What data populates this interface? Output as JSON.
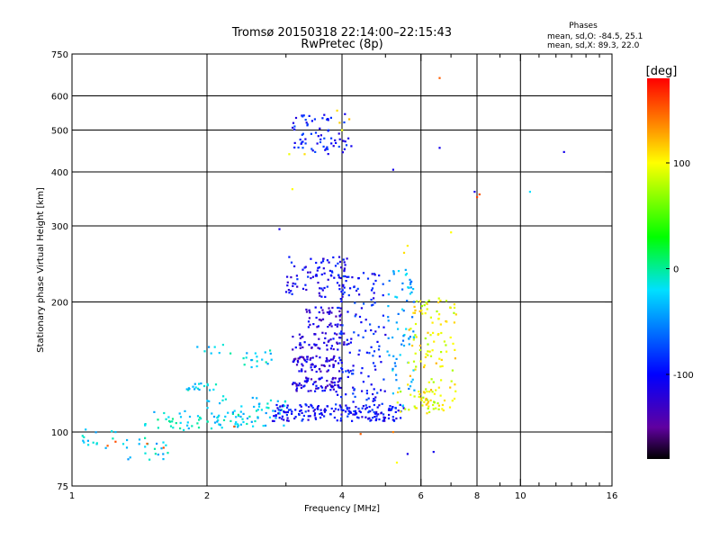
{
  "chart_data": {
    "type": "scatter",
    "title": "Tromsø 20150318 22:14:00–22:15:43",
    "subtitle": "RwPretec (8p)",
    "xlabel": "Frequency [MHz]",
    "ylabel": "Stationary phase Virtual Height [km]",
    "xscale": "log",
    "yscale": "log",
    "xlim": [
      1,
      16
    ],
    "ylim": [
      75,
      750
    ],
    "x_ticks": [
      1,
      2,
      4,
      6,
      8,
      10,
      16
    ],
    "x_tick_labels": [
      "1",
      "2",
      "4",
      "6",
      "8",
      "10",
      "16"
    ],
    "x_major_grid": [
      2,
      4,
      6,
      8,
      10
    ],
    "x_minor_ticks": [
      3,
      5,
      7,
      9,
      11,
      12,
      13,
      14,
      15
    ],
    "y_ticks": [
      75,
      100,
      200,
      300,
      400,
      500,
      600,
      750
    ],
    "y_tick_labels": [
      "75",
      "100",
      "200",
      "300",
      "400",
      "500",
      "600",
      "750"
    ],
    "y_major_grid": [
      100,
      200,
      300,
      400,
      500,
      600
    ],
    "grid": true,
    "info": {
      "heading": "Phases",
      "line1": "mean, sd,O: -84.5, 25.1",
      "line2": "mean, sd,X:  89.3, 22.0"
    },
    "colorbar": {
      "label": "[deg]",
      "ticks": [
        100,
        0,
        -100
      ],
      "tick_labels": [
        "100",
        "0",
        "-100"
      ],
      "range": [
        -180,
        180
      ],
      "stops": [
        {
          "value": 180,
          "color": "#ff0000"
        },
        {
          "value": 135,
          "color": "#ff8c00"
        },
        {
          "value": 100,
          "color": "#ffff00"
        },
        {
          "value": 30,
          "color": "#00ff00"
        },
        {
          "value": -20,
          "color": "#00e0ff"
        },
        {
          "value": -100,
          "color": "#0000ff"
        },
        {
          "value": -150,
          "color": "#6000a0"
        },
        {
          "value": -180,
          "color": "#000000"
        }
      ]
    },
    "groups": [
      {
        "label": "o-trace-low",
        "x_range": [
          1.45,
          2.6
        ],
        "y_range": [
          101,
          112
        ],
        "phase": -20,
        "count": 60
      },
      {
        "label": "o-trace-rising",
        "x_range": [
          1.9,
          3.0
        ],
        "y_range": [
          103,
          122
        ],
        "phase": -25,
        "count": 55
      },
      {
        "label": "o-trace-echo-125",
        "x_range": [
          1.8,
          2.1
        ],
        "y_range": [
          125,
          130
        ],
        "phase": -20,
        "count": 18
      },
      {
        "label": "o-trace-echo-150",
        "x_range": [
          2.4,
          2.8
        ],
        "y_range": [
          140,
          155
        ],
        "phase": -25,
        "count": 18
      },
      {
        "label": "o-trace-echo-155",
        "x_range": [
          1.9,
          2.3
        ],
        "y_range": [
          150,
          160
        ],
        "phase": -25,
        "count": 8
      },
      {
        "label": "o-trace-main",
        "x_range": [
          2.8,
          5.5
        ],
        "y_range": [
          106,
          116
        ],
        "phase": -100,
        "count": 180
      },
      {
        "label": "o-mid-band-1",
        "x_range": [
          3.1,
          4.0
        ],
        "y_range": [
          124,
          134
        ],
        "phase": -115,
        "count": 70
      },
      {
        "label": "o-mid-band-2",
        "x_range": [
          3.1,
          4.0
        ],
        "y_range": [
          138,
          150
        ],
        "phase": -120,
        "count": 70
      },
      {
        "label": "o-mid-band-3",
        "x_range": [
          3.1,
          4.2
        ],
        "y_range": [
          155,
          170
        ],
        "phase": -115,
        "count": 55
      },
      {
        "label": "o-mid-band-4",
        "x_range": [
          3.3,
          4.0
        ],
        "y_range": [
          175,
          195
        ],
        "phase": -120,
        "count": 45
      },
      {
        "label": "o-upper",
        "x_range": [
          3.0,
          4.2
        ],
        "y_range": [
          205,
          255
        ],
        "phase": -105,
        "count": 85
      },
      {
        "label": "o-column-4",
        "x_range": [
          3.9,
          5.0
        ],
        "y_range": [
          115,
          235
        ],
        "phase": -95,
        "count": 130
      },
      {
        "label": "mixed-column-5",
        "x_range": [
          5.0,
          5.8
        ],
        "y_range": [
          115,
          240
        ],
        "phase": -40,
        "count": 70
      },
      {
        "label": "x-trace",
        "x_range": [
          5.6,
          7.2
        ],
        "y_range": [
          112,
          205
        ],
        "phase": 100,
        "count": 120
      },
      {
        "label": "x-trace-low",
        "x_range": [
          5.3,
          6.5
        ],
        "y_range": [
          110,
          125
        ],
        "phase": 95,
        "count": 30
      },
      {
        "label": "f2-echoes",
        "x_range": [
          3.1,
          4.2
        ],
        "y_range": [
          440,
          545
        ],
        "phase": -95,
        "count": 70
      },
      {
        "label": "low-scatter-1",
        "x_range": [
          1.05,
          1.25
        ],
        "y_range": [
          91,
          102
        ],
        "phase": -30,
        "count": 14
      },
      {
        "label": "low-scatter-2",
        "x_range": [
          1.3,
          1.65
        ],
        "y_range": [
          86,
          98
        ],
        "phase": -25,
        "count": 22
      }
    ],
    "points": [
      {
        "x": 1.2,
        "y": 93,
        "phase": 150
      },
      {
        "x": 1.25,
        "y": 95,
        "phase": 155
      },
      {
        "x": 1.47,
        "y": 94,
        "phase": 150
      },
      {
        "x": 1.6,
        "y": 92,
        "phase": 155
      },
      {
        "x": 1.25,
        "y": 100,
        "phase": -30
      },
      {
        "x": 3.1,
        "y": 365,
        "phase": 100
      },
      {
        "x": 3.05,
        "y": 440,
        "phase": 95
      },
      {
        "x": 3.3,
        "y": 440,
        "phase": 110
      },
      {
        "x": 3.9,
        "y": 555,
        "phase": 110
      },
      {
        "x": 3.95,
        "y": 520,
        "phase": 115
      },
      {
        "x": 4.0,
        "y": 500,
        "phase": 95
      },
      {
        "x": 4.15,
        "y": 530,
        "phase": 120
      },
      {
        "x": 5.2,
        "y": 405,
        "phase": -110
      },
      {
        "x": 6.6,
        "y": 660,
        "phase": 150
      },
      {
        "x": 6.6,
        "y": 455,
        "phase": -110
      },
      {
        "x": 7.9,
        "y": 360,
        "phase": -110
      },
      {
        "x": 8.0,
        "y": 350,
        "phase": 160
      },
      {
        "x": 8.1,
        "y": 355,
        "phase": 155
      },
      {
        "x": 10.5,
        "y": 360,
        "phase": -20
      },
      {
        "x": 12.5,
        "y": 445,
        "phase": -110
      },
      {
        "x": 2.9,
        "y": 295,
        "phase": -110
      },
      {
        "x": 7.0,
        "y": 290,
        "phase": 100
      },
      {
        "x": 5.5,
        "y": 260,
        "phase": 110
      },
      {
        "x": 5.6,
        "y": 270,
        "phase": 105
      },
      {
        "x": 5.3,
        "y": 85,
        "phase": 100
      },
      {
        "x": 5.6,
        "y": 89,
        "phase": -110
      },
      {
        "x": 5.2,
        "y": 100,
        "phase": 140
      },
      {
        "x": 6.4,
        "y": 90,
        "phase": -110
      },
      {
        "x": 4.4,
        "y": 99,
        "phase": 150
      },
      {
        "x": 2.3,
        "y": 103,
        "phase": 155
      }
    ]
  }
}
